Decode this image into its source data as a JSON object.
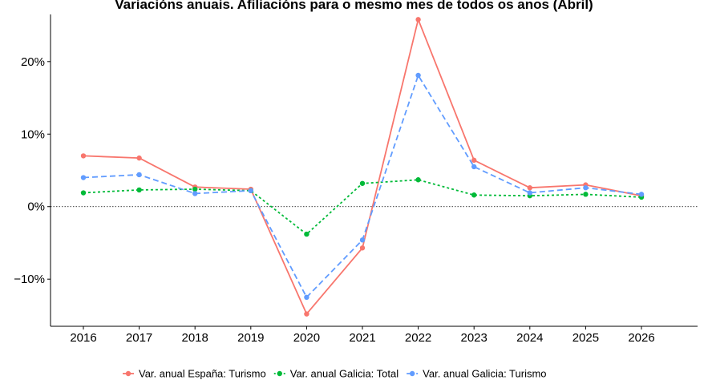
{
  "chart_data": {
    "type": "line",
    "title": "Variacións anuais. Afiliacións para o mesmo mes de todos os anos (Abril)",
    "xlabel": "",
    "ylabel": "",
    "x": [
      "2016",
      "2017",
      "2018",
      "2019",
      "2020",
      "2021",
      "2022",
      "2023",
      "2024",
      "2025",
      "2026"
    ],
    "ylim": [
      -16.5,
      26.5
    ],
    "yticks": [
      -10,
      0,
      10,
      20
    ],
    "ytick_labels": [
      "−10%",
      "0%",
      "10%",
      "20%"
    ],
    "zero_line": true,
    "grid": false,
    "legend_position": "bottom",
    "series": [
      {
        "name": "Var. anual España: Turismo",
        "color": "#F8766D",
        "dash": "solid",
        "values": [
          7.0,
          6.7,
          2.7,
          2.4,
          -14.8,
          -5.7,
          25.8,
          6.4,
          2.6,
          3.0,
          1.5
        ]
      },
      {
        "name": "Var. anual Galicia: Total",
        "color": "#00BA38",
        "dash": "dotted",
        "values": [
          1.9,
          2.3,
          2.4,
          2.2,
          -3.8,
          3.2,
          3.7,
          1.6,
          1.5,
          1.7,
          1.3
        ]
      },
      {
        "name": "Var. anual Galicia: Turismo",
        "color": "#619CFF",
        "dash": "dashed",
        "values": [
          4.0,
          4.4,
          1.8,
          2.2,
          -12.5,
          -4.6,
          18.1,
          5.5,
          1.9,
          2.6,
          1.7
        ]
      }
    ]
  }
}
